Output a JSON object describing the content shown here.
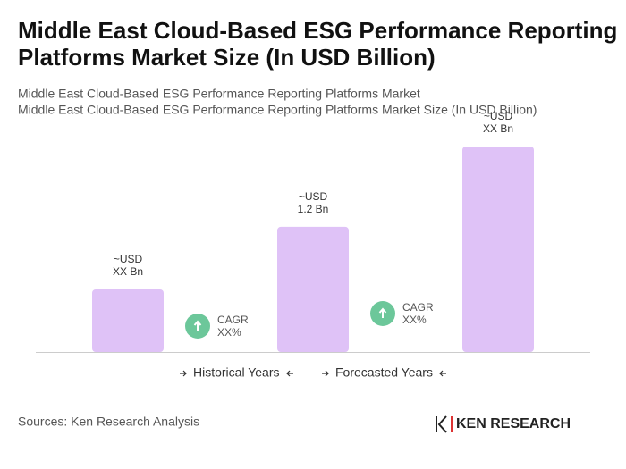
{
  "chart_data": {
    "type": "bar",
    "title": "Middle East Cloud-Based ESG Performance Reporting Platforms Market Size (In USD Billion)",
    "subtitle": [
      "Middle East Cloud-Based ESG Performance Reporting Platforms Market",
      "Middle East Cloud-Based ESG Performance Reporting Platforms Market Size (In USD Billion)"
    ],
    "categories": [
      null,
      null,
      null
    ],
    "values": [
      0.6,
      1.2,
      1.97
    ],
    "value_labels": [
      [
        "~USD",
        "XX Bn"
      ],
      [
        "~USD",
        "1.2 Bn"
      ],
      [
        "~USD",
        "XX Bn"
      ]
    ],
    "color": "#dfc2f7",
    "annotations": [
      {
        "label": "CAGR",
        "value": "XX%"
      },
      {
        "label": "CAGR",
        "value": "XX%"
      }
    ],
    "legend": [
      "Historical Years",
      "Forecasted Years"
    ],
    "source": "Sources: Ken Research Analysis",
    "logo": "KEN RESEARCH"
  }
}
